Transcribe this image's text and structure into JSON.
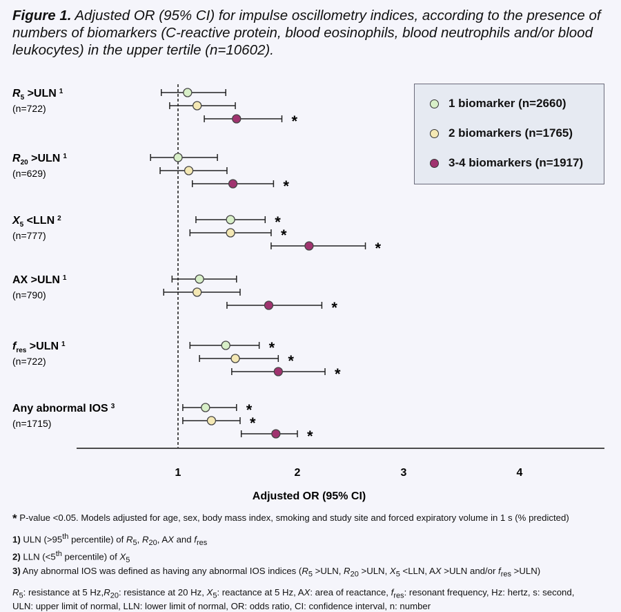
{
  "title": {
    "bold": "Figure 1.",
    "text": " Adjusted OR (95% CI) for impulse oscillometry indices, according to the presence of numbers of biomarkers (C-reactive protein, blood eosinophils, blood neutrophils and/or blood leukocytes) in the upper tertile (n=10602)."
  },
  "legend": [
    {
      "label": "1 biomarker (n=2660)",
      "color": "#d8efc8"
    },
    {
      "label": "2 biomarkers (n=1765)",
      "color": "#f4e8b4"
    },
    {
      "label": "3-4 biomarkers (n=1917)",
      "color": "#a0336f"
    }
  ],
  "chart_data": {
    "type": "forest",
    "xlabel": "Adjusted OR (95% CI)",
    "x_ticks": [
      "1",
      "2",
      "3",
      "4"
    ],
    "reference_line": 1,
    "series_names": [
      "1 biomarker (n=2660)",
      "2 biomarkers (n=1765)",
      "3-4 biomarkers (n=1917)"
    ],
    "series_colors": [
      "#d8efc8",
      "#f4e8b4",
      "#a0336f"
    ],
    "groups": [
      {
        "label": "R",
        "sub": "5",
        "label_rest": " >ULN",
        "sup": "1",
        "italic": true,
        "n": "(n=722)",
        "rows": [
          {
            "or": 1.08,
            "lo": 0.86,
            "hi": 1.4,
            "sig": false
          },
          {
            "or": 1.16,
            "lo": 0.93,
            "hi": 1.48,
            "sig": false
          },
          {
            "or": 1.49,
            "lo": 1.22,
            "hi": 1.87,
            "sig": true
          }
        ]
      },
      {
        "label": "R",
        "sub": "20",
        "label_rest": " >ULN",
        "sup": "1",
        "italic": true,
        "n": "(n=629)",
        "rows": [
          {
            "or": 1.0,
            "lo": 0.77,
            "hi": 1.33,
            "sig": false
          },
          {
            "or": 1.09,
            "lo": 0.85,
            "hi": 1.41,
            "sig": false
          },
          {
            "or": 1.46,
            "lo": 1.12,
            "hi": 1.8,
            "sig": true
          }
        ]
      },
      {
        "label": "X",
        "sub": "5",
        "label_rest": " <LLN",
        "sup": "2",
        "italic": true,
        "n": "(n=777)",
        "rows": [
          {
            "or": 1.44,
            "lo": 1.15,
            "hi": 1.73,
            "sig": true
          },
          {
            "or": 1.44,
            "lo": 1.1,
            "hi": 1.78,
            "sig": true
          },
          {
            "or": 2.11,
            "lo": 1.78,
            "hi": 2.64,
            "sig": true
          }
        ]
      },
      {
        "label": "AX",
        "sub": "",
        "label_rest": " >ULN",
        "sup": "1",
        "italic": false,
        "n": "(n=790)",
        "rows": [
          {
            "or": 1.18,
            "lo": 0.95,
            "hi": 1.49,
            "sig": false
          },
          {
            "or": 1.16,
            "lo": 0.88,
            "hi": 1.52,
            "sig": false
          },
          {
            "or": 1.76,
            "lo": 1.41,
            "hi": 2.23,
            "sig": true
          }
        ]
      },
      {
        "label": "f",
        "sub": "res",
        "label_rest": " >ULN",
        "sup": "1",
        "italic": true,
        "n": "(n=722)",
        "rows": [
          {
            "or": 1.4,
            "lo": 1.1,
            "hi": 1.68,
            "sig": true
          },
          {
            "or": 1.48,
            "lo": 1.18,
            "hi": 1.84,
            "sig": true
          },
          {
            "or": 1.84,
            "lo": 1.45,
            "hi": 2.26,
            "sig": true
          }
        ]
      },
      {
        "label": "Any abnormal IOS",
        "sub": "",
        "label_rest": "",
        "sup": "3",
        "italic": false,
        "n": "(n=1715)",
        "rows": [
          {
            "or": 1.23,
            "lo": 1.04,
            "hi": 1.49,
            "sig": true
          },
          {
            "or": 1.28,
            "lo": 1.04,
            "hi": 1.52,
            "sig": true
          },
          {
            "or": 1.82,
            "lo": 1.53,
            "hi": 2.0,
            "sig": true
          }
        ]
      }
    ]
  },
  "footnotes": {
    "star": "*",
    "pvalue": " P-value <0.05. Models adjusted for age, sex, body mass index, smoking and study site and forced expiratory volume in 1 s (% predicted)",
    "n1_num": "1)",
    "n1_a": " ULN (>95",
    "n1_sup": "th",
    "n1_b": " percentile) of ",
    "n1_c": "R",
    "n1_c_sub": "5",
    "n1_d": ", ",
    "n1_e": "R",
    "n1_e_sub": "20",
    "n1_f": ", A",
    "n1_g": "X",
    "n1_h": " and ",
    "n1_i": "f",
    "n1_i_sub": "res",
    "n2_num": "2)",
    "n2_a": " LLN (<5",
    "n2_sup": "th",
    "n2_b": " percentile) of ",
    "n2_c": "X",
    "n2_c_sub": "5",
    "n3_num": "3)",
    "n3_a": " Any abnormal IOS was defined as having any abnormal IOS indices (",
    "n3_b": "R",
    "n3_b_sub": "5",
    "n3_c": " >ULN, ",
    "n3_d": "R",
    "n3_d_sub": "20",
    "n3_e": " >ULN, ",
    "n3_f": "X",
    "n3_f_sub": "5",
    "n3_g": " <LLN, A",
    "n3_h": "X",
    "n3_i": " >ULN and/or ",
    "n3_j": "f",
    "n3_j_sub": "res",
    "n3_k": " >ULN)",
    "abbr1_a": "R",
    "abbr1_a_sub": "5",
    "abbr1_b": ": resistance at 5 Hz,",
    "abbr1_c": "R",
    "abbr1_c_sub": "20",
    "abbr1_d": ": resistance at 20 Hz, ",
    "abbr1_e": "X",
    "abbr1_e_sub": "5",
    "abbr1_f": ": reactance at 5 Hz, A",
    "abbr1_g": "X",
    "abbr1_h": ": area of reactance, ",
    "abbr1_i": "f",
    "abbr1_i_sub": "res",
    "abbr1_j": ": resonant frequency, Hz: hertz, s: second,",
    "abbr2": "ULN: upper limit of normal, LLN: lower limit of normal, OR: odds ratio, CI: confidence interval, n: number"
  }
}
